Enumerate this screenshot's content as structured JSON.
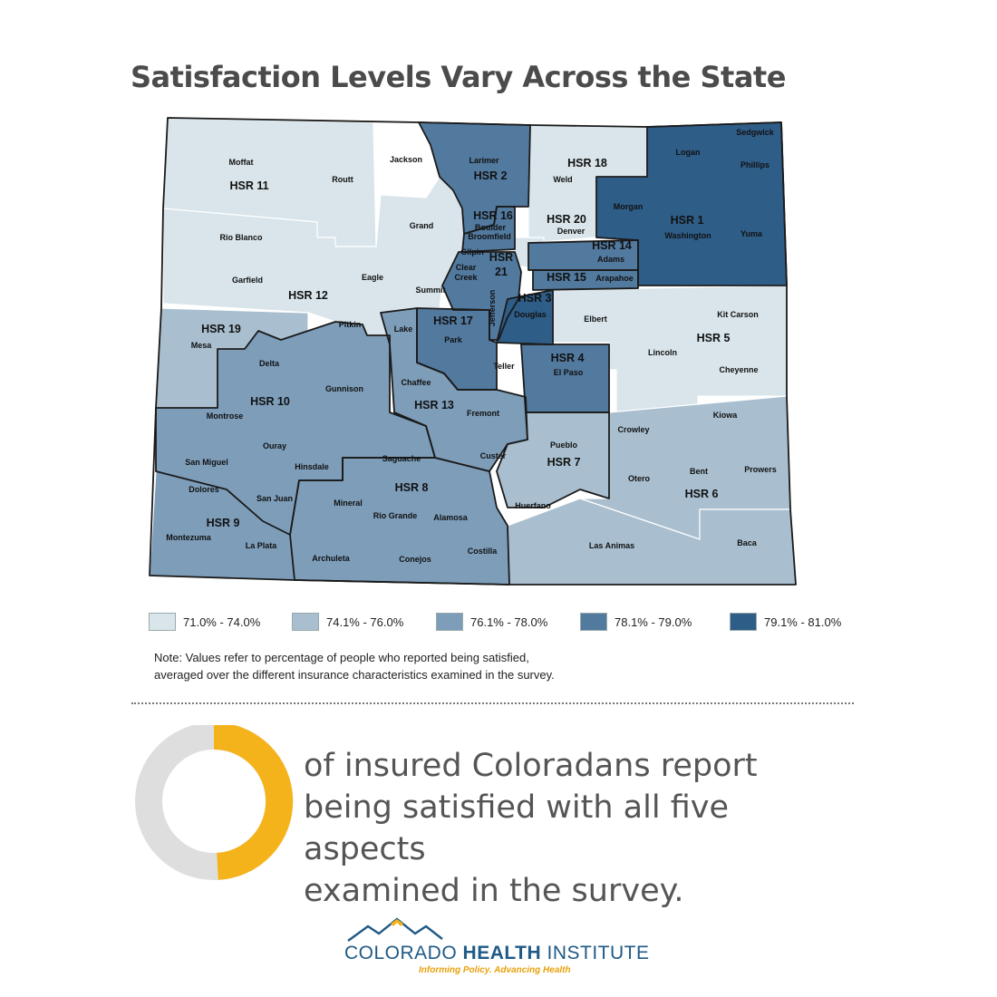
{
  "title": "Satisfaction Levels Vary Across the State",
  "colors": {
    "c1": "#d9e5ea",
    "c2": "#a9bfcf",
    "c3": "#7d9db9",
    "c4": "#52799e",
    "c5": "#2e5d88",
    "border": "#1a1a1a",
    "county_border": "#ffffff",
    "accent": "#f5b31b",
    "donut_gray": "#dedede",
    "brand_blue": "#1f5a86"
  },
  "legend": [
    {
      "label": "71.0% - 74.0%",
      "color": "#d9e5ea"
    },
    {
      "label": "74.1% - 76.0%",
      "color": "#a9bfcf"
    },
    {
      "label": "76.1% - 78.0%",
      "color": "#7d9db9"
    },
    {
      "label": "78.1% - 79.0%",
      "color": "#52799e"
    },
    {
      "label": "79.1% - 81.0%",
      "color": "#2e5d88"
    }
  ],
  "note_line1": "Note: Values refer to percentage of people who reported being satisfied,",
  "note_line2": "averaged over the different insurance characteristics examined in the survey.",
  "stat_line1": "of insured Coloradans report",
  "stat_line2": "being satisfied with all five aspects",
  "stat_line3": "examined in the survey.",
  "donut_icon": "donut-chart-icon",
  "logo": {
    "word1": "COLORADO",
    "word2": "HEALTH",
    "word3": "INSTITUTE",
    "tagline": "Informing Policy. Advancing Health",
    "icon": "mountains-icon"
  },
  "regions": [
    {
      "id": "HSR 1",
      "class": 5,
      "counties": [
        "Logan",
        "Sedgwick",
        "Phillips",
        "Morgan",
        "Washington",
        "Yuma"
      ]
    },
    {
      "id": "HSR 2",
      "class": 4,
      "counties": [
        "Larimer"
      ]
    },
    {
      "id": "HSR 3",
      "class": 5,
      "counties": [
        "Douglas"
      ]
    },
    {
      "id": "HSR 4",
      "class": 4,
      "counties": [
        "El Paso"
      ]
    },
    {
      "id": "HSR 5",
      "class": 1,
      "counties": [
        "Kit Carson",
        "Lincoln",
        "Cheyenne",
        "Elbert"
      ]
    },
    {
      "id": "HSR 6",
      "class": 2,
      "counties": [
        "Kiowa",
        "Crowley",
        "Otero",
        "Bent",
        "Prowers",
        "Baca"
      ]
    },
    {
      "id": "HSR 7",
      "class": 2,
      "counties": [
        "Pueblo"
      ]
    },
    {
      "id": "HSR 8",
      "class": 3,
      "counties": [
        "Saguache",
        "Mineral",
        "Rio Grande",
        "Alamosa",
        "Conejos",
        "Costilla"
      ]
    },
    {
      "id": "HSR 9",
      "class": 3,
      "counties": [
        "Montezuma",
        "La Plata",
        "Dolores",
        "San Juan",
        "Archuleta"
      ]
    },
    {
      "id": "HSR 10",
      "class": 3,
      "counties": [
        "Montrose",
        "Delta",
        "Ouray",
        "San Miguel",
        "Hinsdale",
        "Gunnison"
      ]
    },
    {
      "id": "HSR 11",
      "class": 1,
      "counties": [
        "Moffat",
        "Routt",
        "Rio Blanco"
      ]
    },
    {
      "id": "HSR 12",
      "class": 1,
      "counties": [
        "Garfield",
        "Eagle",
        "Pitkin",
        "Summit",
        "Grand",
        "Jackson"
      ]
    },
    {
      "id": "HSR 13",
      "class": 3,
      "counties": [
        "Chaffee",
        "Lake",
        "Fremont",
        "Custer"
      ]
    },
    {
      "id": "HSR 14",
      "class": 4,
      "counties": [
        "Adams"
      ]
    },
    {
      "id": "HSR 15",
      "class": 4,
      "counties": [
        "Arapahoe"
      ]
    },
    {
      "id": "HSR 16",
      "class": 4,
      "counties": [
        "Boulder",
        "Broomfield"
      ]
    },
    {
      "id": "HSR 17",
      "class": 4,
      "counties": [
        "Park",
        "Teller"
      ]
    },
    {
      "id": "HSR 18",
      "class": 1,
      "counties": [
        "Weld"
      ]
    },
    {
      "id": "HSR 19",
      "class": 2,
      "counties": [
        "Mesa"
      ]
    },
    {
      "id": "HSR 20",
      "class": 1,
      "counties": [
        "Denver"
      ]
    },
    {
      "id": "HSR 21",
      "class": 4,
      "counties": [
        "Jefferson",
        "Gilpin",
        "Clear Creek"
      ]
    }
  ],
  "other_labels": [
    "Gilpin",
    "Clear Creek",
    "Summit",
    "Lake",
    "Huerfano",
    "Las Animas",
    "Custer",
    "Costilla"
  ]
}
